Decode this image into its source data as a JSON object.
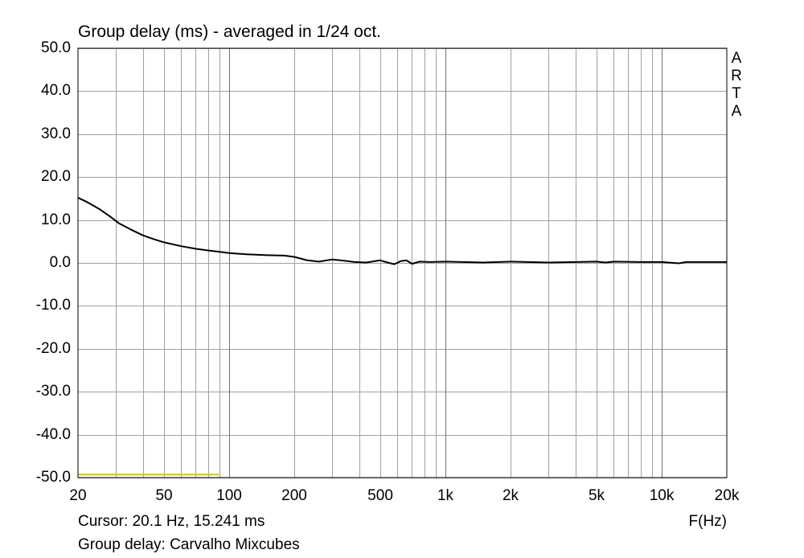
{
  "chart_data": {
    "type": "line",
    "title": "Group delay (ms) - averaged in 1/24 oct.",
    "xlabel": "F(Hz)",
    "x_scale": "log",
    "xlim": [
      20,
      20000
    ],
    "ylim": [
      -50,
      50
    ],
    "grid": true,
    "y_ticks": [
      "50.0",
      "40.0",
      "30.0",
      "20.0",
      "10.0",
      "0.0",
      "-10.0",
      "-20.0",
      "-30.0",
      "-40.0",
      "-50.0"
    ],
    "y_tick_values": [
      50,
      40,
      30,
      20,
      10,
      0,
      -10,
      -20,
      -30,
      -40,
      -50
    ],
    "x_ticks": [
      "20",
      "50",
      "100",
      "200",
      "500",
      "1k",
      "2k",
      "5k",
      "10k",
      "20k"
    ],
    "x_tick_values": [
      20,
      50,
      100,
      200,
      500,
      1000,
      2000,
      5000,
      10000,
      20000
    ],
    "series": [
      {
        "color": "#000000",
        "points": [
          [
            20,
            15.2
          ],
          [
            22,
            14.2
          ],
          [
            25,
            12.6
          ],
          [
            28,
            10.9
          ],
          [
            31,
            9.2
          ],
          [
            35,
            7.8
          ],
          [
            40,
            6.4
          ],
          [
            45,
            5.5
          ],
          [
            50,
            4.8
          ],
          [
            60,
            3.9
          ],
          [
            70,
            3.3
          ],
          [
            80,
            2.9
          ],
          [
            90,
            2.6
          ],
          [
            100,
            2.3
          ],
          [
            120,
            2.0
          ],
          [
            150,
            1.8
          ],
          [
            180,
            1.7
          ],
          [
            200,
            1.4
          ],
          [
            230,
            0.6
          ],
          [
            260,
            0.3
          ],
          [
            300,
            0.8
          ],
          [
            340,
            0.5
          ],
          [
            380,
            0.2
          ],
          [
            430,
            0.1
          ],
          [
            470,
            0.4
          ],
          [
            500,
            0.6
          ],
          [
            540,
            0.1
          ],
          [
            580,
            -0.3
          ],
          [
            620,
            0.4
          ],
          [
            660,
            0.6
          ],
          [
            700,
            -0.2
          ],
          [
            760,
            0.3
          ],
          [
            850,
            0.2
          ],
          [
            1000,
            0.3
          ],
          [
            1200,
            0.2
          ],
          [
            1500,
            0.1
          ],
          [
            2000,
            0.3
          ],
          [
            3000,
            0.1
          ],
          [
            4000,
            0.2
          ],
          [
            5000,
            0.3
          ],
          [
            5500,
            0.1
          ],
          [
            6000,
            0.3
          ],
          [
            8000,
            0.2
          ],
          [
            10000,
            0.2
          ],
          [
            12000,
            -0.1
          ],
          [
            13000,
            0.2
          ],
          [
            20000,
            0.2
          ]
        ]
      },
      {
        "color": "#c8c800",
        "points": [
          [
            20,
            -49.3
          ],
          [
            90,
            -49.3
          ]
        ]
      }
    ]
  },
  "cursor_readout": "Cursor: 20.1 Hz, 15.241 ms",
  "legend_text": "Group delay: Carvalho Mixcubes",
  "brand": "ARTA",
  "colors": {
    "background": "#ffffff",
    "grid": "#a0a0a0",
    "border": "#000000"
  }
}
